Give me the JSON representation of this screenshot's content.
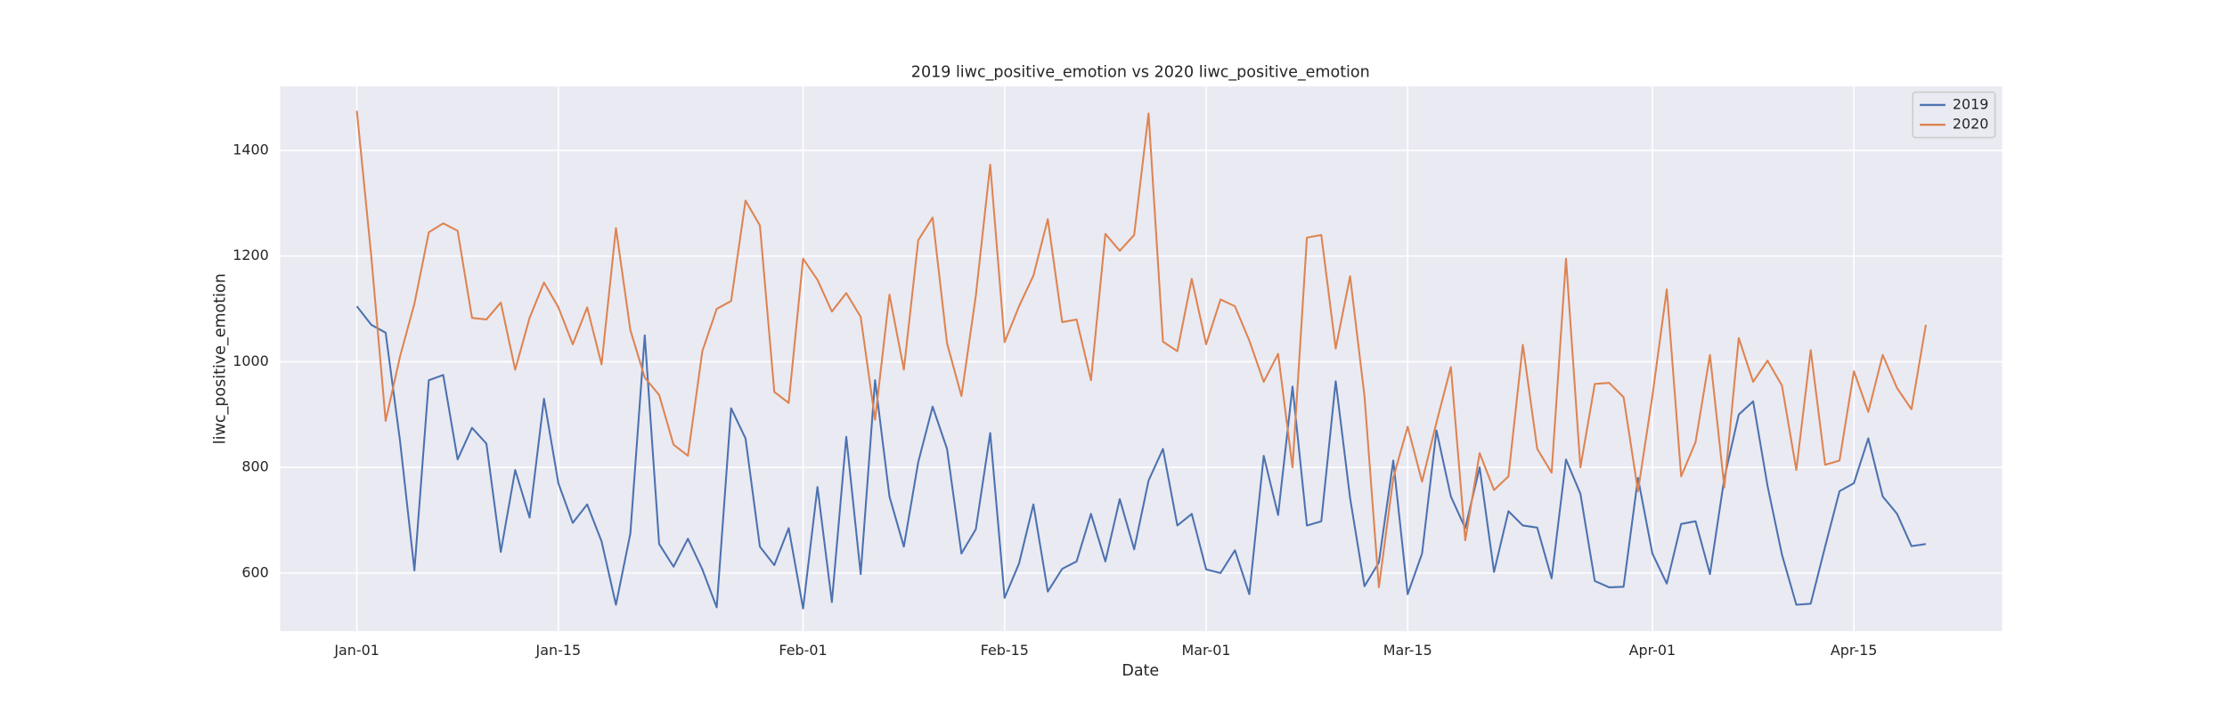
{
  "chart_data": {
    "type": "line",
    "title": "2019 liwc_positive_emotion vs 2020 liwc_positive_emotion",
    "x_label": "Date",
    "y_label": "liwc_positive_emotion",
    "categories": [
      "Jan-01",
      null,
      null,
      null,
      null,
      null,
      null,
      null,
      null,
      null,
      null,
      null,
      null,
      null,
      "Jan-15",
      null,
      null,
      null,
      null,
      null,
      null,
      null,
      null,
      null,
      null,
      null,
      null,
      null,
      null,
      null,
      null,
      "Feb-01",
      null,
      null,
      null,
      null,
      null,
      null,
      null,
      null,
      null,
      null,
      null,
      null,
      null,
      "Feb-15",
      null,
      null,
      null,
      null,
      null,
      null,
      null,
      null,
      null,
      null,
      null,
      null,
      null,
      "Mar-01",
      null,
      null,
      null,
      null,
      null,
      null,
      null,
      null,
      null,
      null,
      null,
      null,
      null,
      "Mar-15",
      null,
      null,
      null,
      null,
      null,
      null,
      null,
      null,
      null,
      null,
      null,
      null,
      null,
      null,
      null,
      null,
      "Apr-01",
      null,
      null,
      null,
      null,
      null,
      null,
      null,
      null,
      null,
      null,
      null,
      null,
      null,
      "Apr-15",
      null,
      null,
      null,
      null,
      null
    ],
    "series": [
      {
        "name": "2019",
        "color": "#4c72b0",
        "values": [
          1105,
          1070,
          1055,
          850,
          605,
          965,
          975,
          815,
          875,
          845,
          640,
          795,
          705,
          930,
          770,
          695,
          730,
          660,
          540,
          675,
          1050,
          655,
          612,
          665,
          607,
          535,
          912,
          855,
          650,
          615,
          685,
          533,
          763,
          545,
          858,
          598,
          965,
          745,
          650,
          810,
          915,
          835,
          637,
          683,
          865,
          553,
          618,
          730,
          565,
          608,
          622,
          712,
          622,
          740,
          645,
          775,
          835,
          690,
          712,
          607,
          600,
          643,
          560,
          822,
          710,
          953,
          690,
          698,
          963,
          742,
          575,
          620,
          813,
          560,
          637,
          870,
          745,
          685,
          800,
          602,
          717,
          690,
          686,
          590,
          815,
          750,
          585,
          573,
          574,
          780,
          637,
          580,
          693,
          698,
          598,
          780,
          900,
          925,
          765,
          635,
          540,
          542,
          650,
          755,
          770,
          855,
          745,
          712,
          651,
          655
        ]
      },
      {
        "name": "2020",
        "color": "#dd8452",
        "values": [
          1475,
          1200,
          888,
          1010,
          1110,
          1245,
          1262,
          1248,
          1083,
          1080,
          1112,
          985,
          1083,
          1150,
          1103,
          1033,
          1103,
          995,
          1253,
          1060,
          970,
          937,
          843,
          822,
          1020,
          1100,
          1115,
          1305,
          1258,
          943,
          922,
          1195,
          1155,
          1095,
          1130,
          1085,
          890,
          1127,
          985,
          1230,
          1273,
          1035,
          935,
          1125,
          1373,
          1037,
          1105,
          1163,
          1270,
          1075,
          1080,
          965,
          1242,
          1210,
          1240,
          1470,
          1038,
          1020,
          1157,
          1033,
          1118,
          1105,
          1040,
          962,
          1015,
          800,
          1235,
          1240,
          1025,
          1162,
          935,
          573,
          780,
          877,
          773,
          885,
          990,
          662,
          827,
          757,
          783,
          1032,
          835,
          790,
          1195,
          800,
          958,
          960,
          933,
          755,
          935,
          1137,
          783,
          848,
          1013,
          762,
          1045,
          962,
          1002,
          955,
          795,
          1022,
          805,
          813,
          982,
          905,
          1013,
          950,
          910,
          1070
        ]
      }
    ],
    "ylim": [
      490,
      1521
    ],
    "yticks": [
      600,
      800,
      1000,
      1200,
      1400
    ],
    "grid": true,
    "legend": "upper right"
  }
}
